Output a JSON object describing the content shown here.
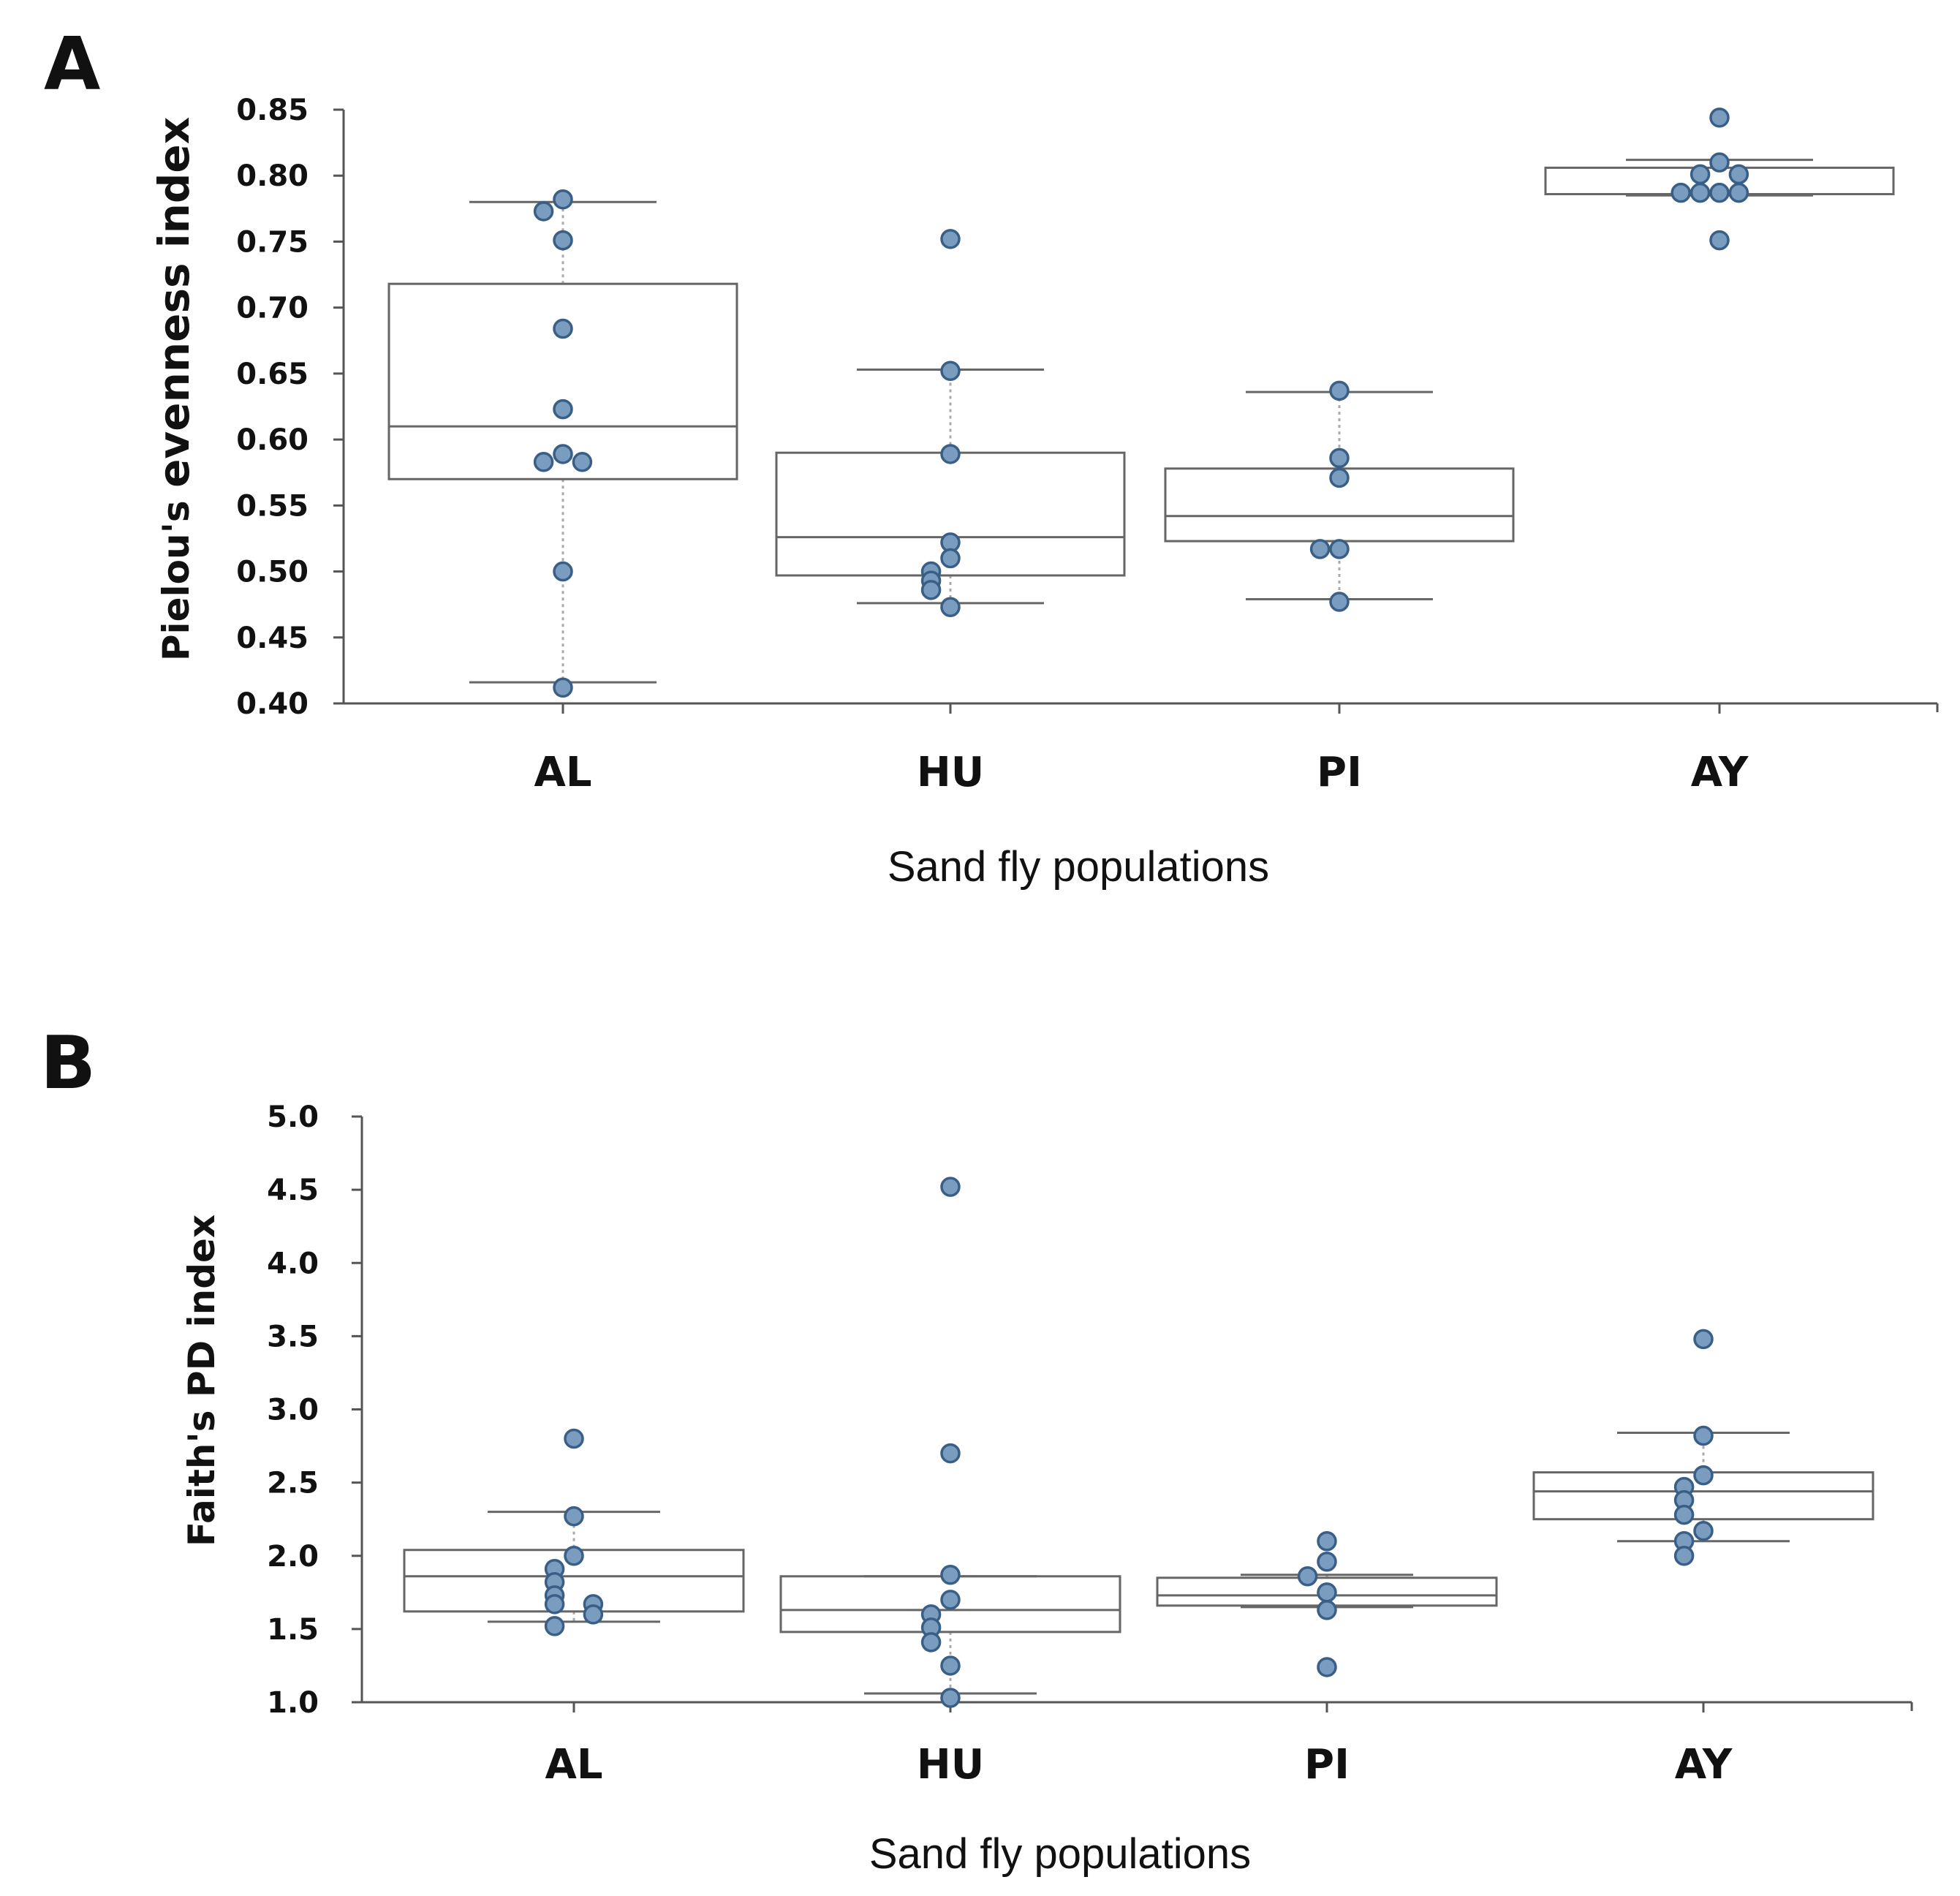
{
  "figure": {
    "point_color": "#7a9cbf",
    "point_edge_color": "#3a5f86",
    "box_color": "#666666",
    "axis_color": "#555555"
  },
  "chart_data": [
    {
      "panel": "A",
      "type": "box",
      "title": "",
      "xlabel": "Sand fly populations",
      "ylabel_prefix": "Pielou's ",
      "ylabel_main": "evenness index",
      "ylim": [
        0.4,
        0.85
      ],
      "yticks": [
        0.4,
        0.45,
        0.5,
        0.55,
        0.6,
        0.65,
        0.7,
        0.75,
        0.8,
        0.85
      ],
      "ytick_labels": [
        "0.40",
        "0.45",
        "0.50",
        "0.55",
        "0.60",
        "0.65",
        "0.70",
        "0.75",
        "0.80",
        "0.85"
      ],
      "categories": [
        "AL",
        "HU",
        "PI",
        "AY"
      ],
      "groups": [
        {
          "name": "AL",
          "whisker_low": 0.416,
          "q1": 0.57,
          "median": 0.61,
          "q3": 0.718,
          "whisker_high": 0.78,
          "points": [
            0.782,
            0.773,
            0.751,
            0.684,
            0.623,
            0.589,
            0.583,
            0.583,
            0.5,
            0.412
          ]
        },
        {
          "name": "HU",
          "whisker_low": 0.476,
          "q1": 0.497,
          "median": 0.526,
          "q3": 0.59,
          "whisker_high": 0.653,
          "points": [
            0.752,
            0.652,
            0.589,
            0.522,
            0.51,
            0.5,
            0.493,
            0.486,
            0.473
          ]
        },
        {
          "name": "PI",
          "whisker_low": 0.479,
          "q1": 0.523,
          "median": 0.542,
          "q3": 0.578,
          "whisker_high": 0.636,
          "points": [
            0.637,
            0.586,
            0.571,
            0.517,
            0.517,
            0.477
          ]
        },
        {
          "name": "AY",
          "whisker_low": 0.785,
          "q1": 0.786,
          "median": 0.786,
          "q3": 0.806,
          "whisker_high": 0.812,
          "points": [
            0.844,
            0.81,
            0.801,
            0.801,
            0.787,
            0.787,
            0.787,
            0.787,
            0.751
          ]
        }
      ]
    },
    {
      "panel": "B",
      "type": "box",
      "title": "",
      "xlabel": "Sand fly populations",
      "ylabel": "Faith's PD index",
      "ylim": [
        1.0,
        5.0
      ],
      "yticks": [
        1.0,
        1.5,
        2.0,
        2.5,
        3.0,
        3.5,
        4.0,
        4.5,
        5.0
      ],
      "ytick_labels": [
        "1.0",
        "1.5",
        "2.0",
        "2.5",
        "3.0",
        "3.5",
        "4.0",
        "4.5",
        "5.0"
      ],
      "categories": [
        "AL",
        "HU",
        "PI",
        "AY"
      ],
      "groups": [
        {
          "name": "AL",
          "whisker_low": 1.55,
          "q1": 1.62,
          "median": 1.86,
          "q3": 2.04,
          "whisker_high": 2.3,
          "points": [
            2.8,
            2.27,
            2.0,
            1.91,
            1.82,
            1.73,
            1.67,
            1.67,
            1.6,
            1.52
          ]
        },
        {
          "name": "HU",
          "whisker_low": 1.06,
          "q1": 1.48,
          "median": 1.63,
          "q3": 1.86,
          "whisker_high": 1.86,
          "points": [
            4.52,
            2.7,
            1.87,
            1.7,
            1.6,
            1.51,
            1.41,
            1.25,
            1.03
          ]
        },
        {
          "name": "PI",
          "whisker_low": 1.65,
          "q1": 1.66,
          "median": 1.73,
          "q3": 1.85,
          "whisker_high": 1.87,
          "points": [
            2.1,
            1.96,
            1.86,
            1.75,
            1.63,
            1.24
          ]
        },
        {
          "name": "AY",
          "whisker_low": 2.1,
          "q1": 2.25,
          "median": 2.44,
          "q3": 2.57,
          "whisker_high": 2.84,
          "points": [
            3.48,
            2.82,
            2.55,
            2.47,
            2.38,
            2.28,
            2.17,
            2.1,
            2.0
          ]
        }
      ]
    }
  ]
}
